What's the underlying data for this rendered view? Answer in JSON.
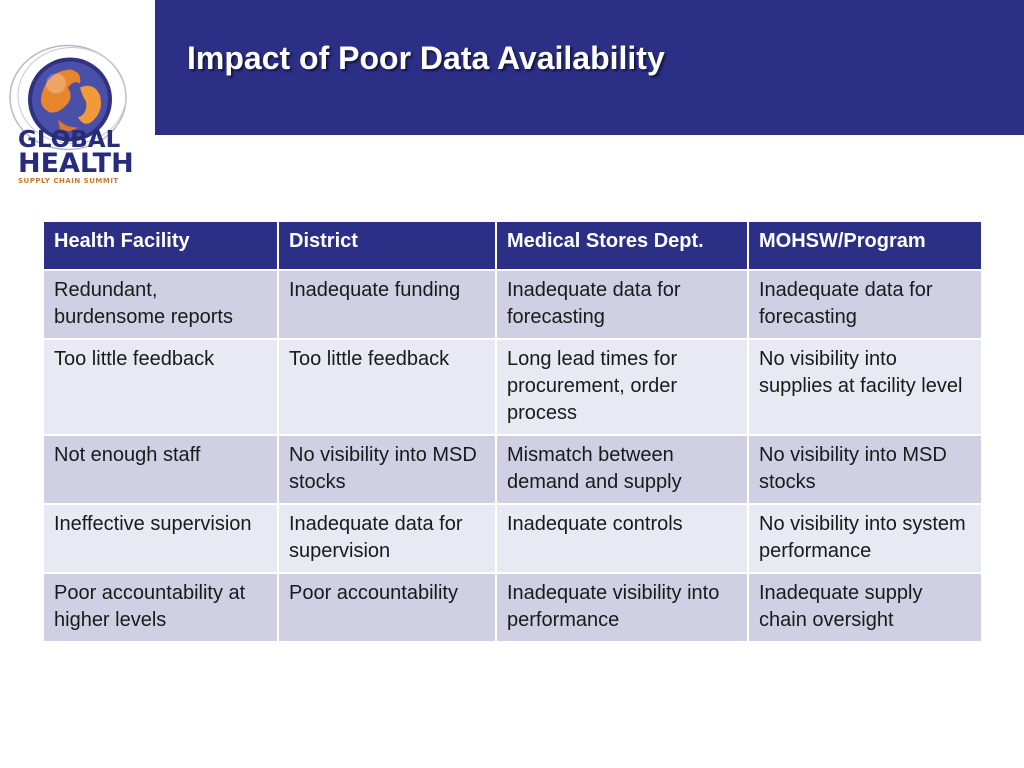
{
  "slide": {
    "title": "Impact of Poor Data Availability",
    "header_color": "#2b2f86"
  },
  "logo": {
    "line1": "GLOBAL",
    "line2": "HEALTH",
    "line3": "SUPPLY CHAIN SUMMIT"
  },
  "table": {
    "headers": [
      "Health Facility",
      "District",
      "Medical Stores Dept.",
      "MOHSW/Program"
    ],
    "rows": [
      [
        "Redundant, burdensome reports",
        "Inadequate funding",
        "Inadequate data for forecasting",
        "Inadequate data for forecasting"
      ],
      [
        "Too little feedback",
        "Too little feedback",
        "Long lead times for procurement, order process",
        "No visibility into supplies at facility level"
      ],
      [
        "Not enough staff",
        "No visibility into MSD stocks",
        "Mismatch between demand and supply",
        "No visibility into MSD stocks"
      ],
      [
        "Ineffective supervision",
        "Inadequate data for supervision",
        "Inadequate controls",
        "No visibility into system performance"
      ],
      [
        "Poor accountability at higher levels",
        "Poor accountability",
        "Inadequate visibility into performance",
        "Inadequate supply chain oversight"
      ]
    ]
  }
}
